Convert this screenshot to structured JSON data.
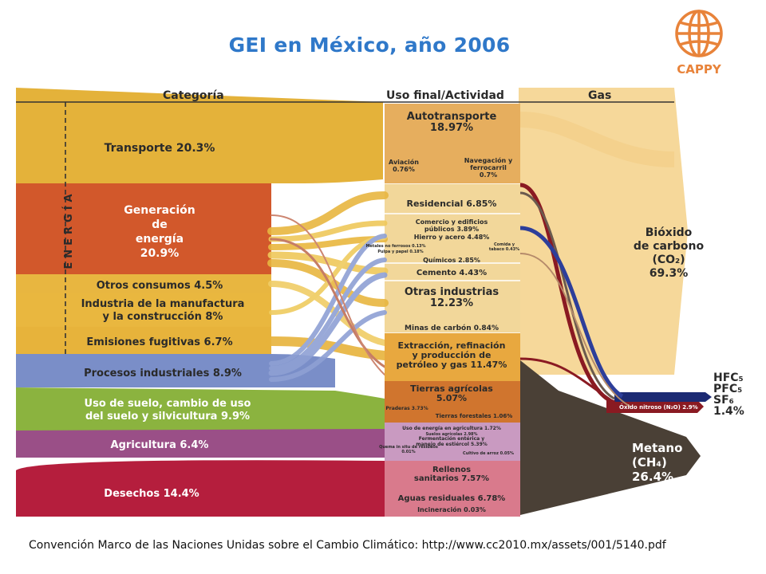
{
  "title": "GEI en México, año 2006",
  "logo": {
    "name": "CAPPY",
    "color": "#e8833a"
  },
  "source": "Convención Marco de las Naciones Unidas sobre el Cambio Climático: http://www.cc2010.mx/assets/001/5140.pdf",
  "headers": {
    "category": "Categoría",
    "activity": "Uso final/Actividad",
    "gas": "Gas"
  },
  "energy_label": "ENERGÍA",
  "categories": [
    {
      "lines": [
        "Transporte 20.3%"
      ],
      "color": "#e4b23a",
      "value": 20.3
    },
    {
      "lines": [
        "Generación",
        "de",
        "energía",
        "20.9%"
      ],
      "color": "#d2582b",
      "value": 20.9
    },
    {
      "lines": [
        "Otros consumos 4.5%"
      ],
      "color": "#e8b640",
      "value": 4.5
    },
    {
      "lines": [
        "Industria de la manufactura",
        "y la construcción 8%"
      ],
      "color": "#e9b73f",
      "value": 8
    },
    {
      "lines": [
        "Emisiones fugitivas 6.7%"
      ],
      "color": "#e7b33b",
      "value": 6.7
    },
    {
      "lines": [
        "Procesos industriales 8.9%"
      ],
      "color": "#7a8ec8",
      "value": 8.9
    },
    {
      "lines": [
        "Uso de suelo, cambio de uso",
        "del suelo y silvicultura 9.9%"
      ],
      "color": "#8bb33f",
      "value": 9.9
    },
    {
      "lines": [
        "Agricultura 6.4%"
      ],
      "color": "#9a4f87",
      "value": 6.4
    },
    {
      "lines": [
        "Desechos 14.4%"
      ],
      "color": "#b51e3d",
      "value": 14.4
    }
  ],
  "activities": [
    {
      "lines": [
        "Autotransporte",
        "18.97%"
      ],
      "color": "#e6ae5e",
      "size": 13
    },
    {
      "lines": [
        "Aviación",
        "0.76%"
      ],
      "color": "#e6ae5e",
      "size": 8
    },
    {
      "lines": [
        "Navegación y",
        "ferrocarril",
        "0.7%"
      ],
      "color": "#e6ae5e",
      "size": 8
    },
    {
      "lines": [
        "Residencial 6.85%"
      ],
      "color": "#f0d37e",
      "size": 11
    },
    {
      "lines": [
        "Comercio y edificios",
        "públicos 3.89%"
      ],
      "color": "#f0d37e",
      "size": 8
    },
    {
      "lines": [
        "Hierro y acero 4.48%"
      ],
      "color": "#f0d37e",
      "size": 8
    },
    {
      "lines": [
        "Metales no ferrosos 0.13%"
      ],
      "color": "#f0d37e",
      "size": 5
    },
    {
      "lines": [
        "Pulpa y papel 0.18%"
      ],
      "color": "#f0d37e",
      "size": 5
    },
    {
      "lines": [
        "Comida y",
        "tabaco 0.43%"
      ],
      "color": "#f0d37e",
      "size": 5
    },
    {
      "lines": [
        "Químicos 2.85%"
      ],
      "color": "#f0d37e",
      "size": 8
    },
    {
      "lines": [
        "Cemento 4.43%"
      ],
      "color": "#f0d37e",
      "size": 10
    },
    {
      "lines": [
        "Otras industrias",
        "12.23%"
      ],
      "color": "#f0d37e",
      "size": 13
    },
    {
      "lines": [
        "Minas de carbón 0.84%"
      ],
      "color": "#f0d37e",
      "size": 9
    },
    {
      "lines": [
        "Extracción, refinación",
        "y producción de",
        "petróleo y gas 11.47%"
      ],
      "color": "#e8a83f",
      "size": 11
    },
    {
      "lines": [
        "Tierras agrícolas",
        "5.07%"
      ],
      "color": "#d0752e",
      "size": 11
    },
    {
      "lines": [
        "Praderas 3.73%"
      ],
      "color": "#d0752e",
      "size": 6
    },
    {
      "lines": [
        "Tierras forestales 1.06%"
      ],
      "color": "#d0752e",
      "size": 7
    },
    {
      "lines": [
        "Uso de energía en agricultura 1.72%"
      ],
      "color": "#c99ac1",
      "size": 6
    },
    {
      "lines": [
        "Suelos agrícolas 2.98%"
      ],
      "color": "#c99ac1",
      "size": 5
    },
    {
      "lines": [
        "Fermentación entérica y",
        "manejo de estiércol 5.39%"
      ],
      "color": "#c99ac1",
      "size": 6
    },
    {
      "lines": [
        "Quema in situ de residuos",
        "0.01%"
      ],
      "color": "#c99ac1",
      "size": 5
    },
    {
      "lines": [
        "Cultivo de arroz 0.05%"
      ],
      "color": "#c99ac1",
      "size": 5
    },
    {
      "lines": [
        "Rellenos",
        "sanitarios 7.57%"
      ],
      "color": "#d97a8c",
      "size": 10
    },
    {
      "lines": [
        "Aguas residuales 6.78%"
      ],
      "color": "#d97a8c",
      "size": 10
    },
    {
      "lines": [
        "Incineración 0.03%"
      ],
      "color": "#d97a8c",
      "size": 8
    }
  ],
  "gases": {
    "co2": {
      "lines": [
        "Bióxido",
        "de carbono",
        "(CO₂)",
        "69.3%"
      ],
      "color": "#f6d89a",
      "value": 69.3
    },
    "fluor": {
      "lines": [
        "HFC₅",
        "PFC₅",
        "SF₆",
        "1.4%"
      ],
      "color": "#2a2a2a",
      "value": 1.4
    },
    "n2o": {
      "label": "Óxido nitroso (N₂O) 2.9%",
      "color": "#8a1a22",
      "value": 2.9
    },
    "ch4": {
      "lines": [
        "Metano",
        "(CH₄)",
        "26.4%"
      ],
      "color": "#4a4036",
      "value": 26.4
    }
  }
}
